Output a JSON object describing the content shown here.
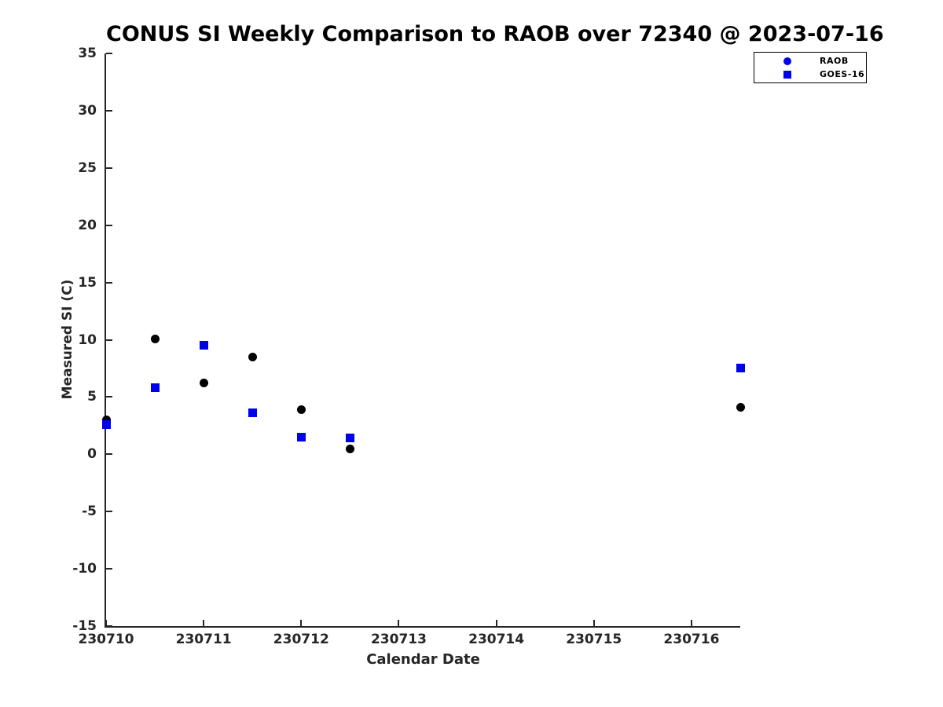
{
  "figure": {
    "title": "CONUS SI Weekly Comparison to RAOB over 72340 @ 2023-07-16"
  },
  "chart_data": {
    "type": "scatter",
    "title": "CONUS SI Weekly Comparison to RAOB over 72340 @ 2023-07-16",
    "xlabel": "Calendar Date",
    "ylabel": "Measured SI (C)",
    "xlim": [
      230710,
      230716.5
    ],
    "ylim": [
      -15,
      35
    ],
    "x_ticks": [
      230710,
      230711,
      230712,
      230713,
      230714,
      230715,
      230716
    ],
    "x_tick_labels": [
      "230710",
      "230711",
      "230712",
      "230713",
      "230714",
      "230715",
      "230716"
    ],
    "y_ticks": [
      -15,
      -10,
      -5,
      0,
      5,
      10,
      15,
      20,
      25,
      30,
      35
    ],
    "y_tick_labels": [
      "-15",
      "-10",
      "-5",
      "0",
      "5",
      "10",
      "15",
      "20",
      "25",
      "30",
      "35"
    ],
    "grid": false,
    "legend_position": "top-right",
    "colors": {
      "series_blue": "#0000EE",
      "series_black": "#000000",
      "axis": "#262626"
    },
    "series": [
      {
        "name": "RAOB",
        "marker": "circle",
        "color": "#000000",
        "legend_marker_color": "#0000EE",
        "points": [
          {
            "x": 230710.0,
            "y": 3.0
          },
          {
            "x": 230710.5,
            "y": 10.1
          },
          {
            "x": 230711.0,
            "y": 6.2
          },
          {
            "x": 230711.5,
            "y": 8.5
          },
          {
            "x": 230712.0,
            "y": 3.9
          },
          {
            "x": 230712.5,
            "y": 0.5
          },
          {
            "x": 230716.5,
            "y": 4.1
          }
        ]
      },
      {
        "name": "GOES-16",
        "marker": "square",
        "color": "#0000EE",
        "legend_marker_color": "#0000EE",
        "points": [
          {
            "x": 230710.0,
            "y": 2.6
          },
          {
            "x": 230710.5,
            "y": 5.8
          },
          {
            "x": 230711.0,
            "y": 9.5
          },
          {
            "x": 230711.5,
            "y": 3.6
          },
          {
            "x": 230712.0,
            "y": 1.5
          },
          {
            "x": 230712.5,
            "y": 1.4
          },
          {
            "x": 230716.5,
            "y": 7.5
          }
        ]
      }
    ]
  }
}
